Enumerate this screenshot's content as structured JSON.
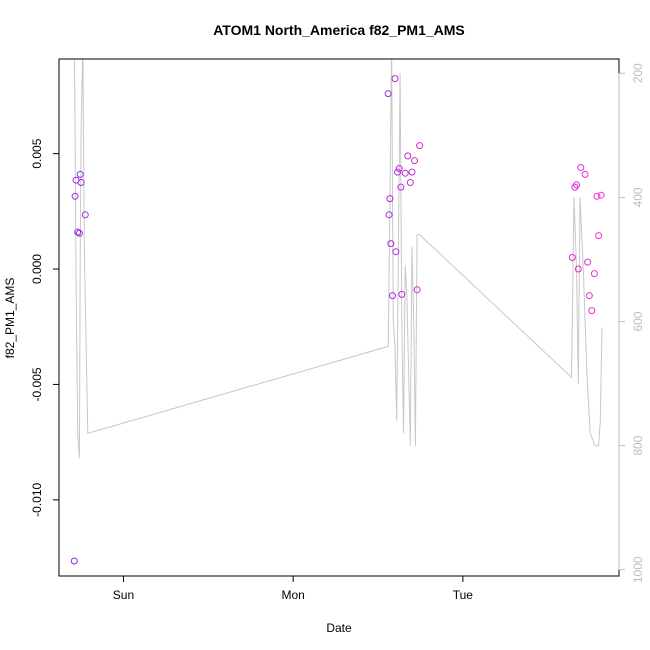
{
  "chart_data": {
    "type": "scatter",
    "title": "ATOM1 North_America f82_PM1_AMS",
    "xlabel": "Date",
    "ylabel": "f82_PM1_AMS",
    "x_unit": "days",
    "x_ticks": [
      {
        "label": "Sun",
        "x": 1.0
      },
      {
        "label": "Mon",
        "x": 2.0
      },
      {
        "label": "Tue",
        "x": 3.0
      }
    ],
    "xlim": [
      0.62,
      3.92
    ],
    "ylim": [
      -0.0133,
      0.0091
    ],
    "y_ticks": [
      {
        "label": "0.005",
        "value": 0.005
      },
      {
        "label": "0.000",
        "value": 0.0
      },
      {
        "label": "-0.005",
        "value": -0.005
      },
      {
        "label": "-0.010",
        "value": -0.01
      }
    ],
    "right_axis": {
      "reversed": true,
      "lim": [
        1010,
        177
      ],
      "ticks": [
        {
          "label": "200",
          "value": 200
        },
        {
          "label": "400",
          "value": 400
        },
        {
          "label": "600",
          "value": 600
        },
        {
          "label": "800",
          "value": 800
        },
        {
          "label": "1000",
          "value": 1000
        }
      ],
      "color": "#bdbdbd"
    },
    "grid": false,
    "legend": "none",
    "point_color_start": "#8b2be2",
    "point_color_end": "#ff2fd0",
    "line_color": "#c8c8c8",
    "points": [
      {
        "x": 0.71,
        "y": -0.01265
      },
      {
        "x": 0.715,
        "y": 0.00315
      },
      {
        "x": 0.72,
        "y": 0.00385
      },
      {
        "x": 0.73,
        "y": 0.0016
      },
      {
        "x": 0.74,
        "y": 0.00155
      },
      {
        "x": 0.745,
        "y": 0.0041
      },
      {
        "x": 0.75,
        "y": 0.00375
      },
      {
        "x": 0.775,
        "y": 0.00235
      },
      {
        "x": 2.56,
        "y": 0.0076
      },
      {
        "x": 2.565,
        "y": 0.00235
      },
      {
        "x": 2.57,
        "y": 0.00305
      },
      {
        "x": 2.575,
        "y": 0.0011
      },
      {
        "x": 2.585,
        "y": -0.00115
      },
      {
        "x": 2.6,
        "y": 0.00825
      },
      {
        "x": 2.605,
        "y": 0.00075
      },
      {
        "x": 2.615,
        "y": 0.0042
      },
      {
        "x": 2.625,
        "y": 0.00435
      },
      {
        "x": 2.635,
        "y": 0.00355
      },
      {
        "x": 2.64,
        "y": -0.0011
      },
      {
        "x": 2.66,
        "y": 0.00415
      },
      {
        "x": 2.675,
        "y": 0.0049
      },
      {
        "x": 2.69,
        "y": 0.00375
      },
      {
        "x": 2.7,
        "y": 0.0042
      },
      {
        "x": 2.715,
        "y": 0.0047
      },
      {
        "x": 2.73,
        "y": -0.0009
      },
      {
        "x": 2.745,
        "y": 0.00535
      },
      {
        "x": 3.645,
        "y": 0.0005
      },
      {
        "x": 3.66,
        "y": 0.00355
      },
      {
        "x": 3.67,
        "y": 0.00365
      },
      {
        "x": 3.68,
        "y": 0.0
      },
      {
        "x": 3.695,
        "y": 0.0044
      },
      {
        "x": 3.72,
        "y": 0.0041
      },
      {
        "x": 3.735,
        "y": 0.0003
      },
      {
        "x": 3.745,
        "y": -0.00115
      },
      {
        "x": 3.76,
        "y": -0.0018
      },
      {
        "x": 3.775,
        "y": -0.0002
      },
      {
        "x": 3.79,
        "y": 0.00315
      },
      {
        "x": 3.8,
        "y": 0.00145
      },
      {
        "x": 3.815,
        "y": 0.0032
      }
    ],
    "line_right_axis": [
      {
        "x": 0.71,
        "y": 150
      },
      {
        "x": 0.715,
        "y": 300
      },
      {
        "x": 0.72,
        "y": 520
      },
      {
        "x": 0.73,
        "y": 780
      },
      {
        "x": 0.74,
        "y": 820
      },
      {
        "x": 0.745,
        "y": 500
      },
      {
        "x": 0.75,
        "y": 300
      },
      {
        "x": 0.76,
        "y": 150
      },
      {
        "x": 0.77,
        "y": 500
      },
      {
        "x": 0.79,
        "y": 780
      },
      {
        "x": 2.56,
        "y": 640
      },
      {
        "x": 2.57,
        "y": 420
      },
      {
        "x": 2.58,
        "y": 150
      },
      {
        "x": 2.59,
        "y": 600
      },
      {
        "x": 2.6,
        "y": 640
      },
      {
        "x": 2.61,
        "y": 760
      },
      {
        "x": 2.62,
        "y": 490
      },
      {
        "x": 2.63,
        "y": 200
      },
      {
        "x": 2.64,
        "y": 600
      },
      {
        "x": 2.65,
        "y": 780
      },
      {
        "x": 2.66,
        "y": 510
      },
      {
        "x": 2.67,
        "y": 560
      },
      {
        "x": 2.69,
        "y": 800
      },
      {
        "x": 2.7,
        "y": 480
      },
      {
        "x": 2.71,
        "y": 600
      },
      {
        "x": 2.72,
        "y": 800
      },
      {
        "x": 2.73,
        "y": 460
      },
      {
        "x": 2.745,
        "y": 460
      },
      {
        "x": 3.64,
        "y": 690
      },
      {
        "x": 3.655,
        "y": 400
      },
      {
        "x": 3.67,
        "y": 520
      },
      {
        "x": 3.68,
        "y": 700
      },
      {
        "x": 3.69,
        "y": 400
      },
      {
        "x": 3.71,
        "y": 520
      },
      {
        "x": 3.73,
        "y": 680
      },
      {
        "x": 3.75,
        "y": 780
      },
      {
        "x": 3.78,
        "y": 800
      },
      {
        "x": 3.8,
        "y": 800
      },
      {
        "x": 3.81,
        "y": 760
      },
      {
        "x": 3.82,
        "y": 610
      }
    ]
  }
}
